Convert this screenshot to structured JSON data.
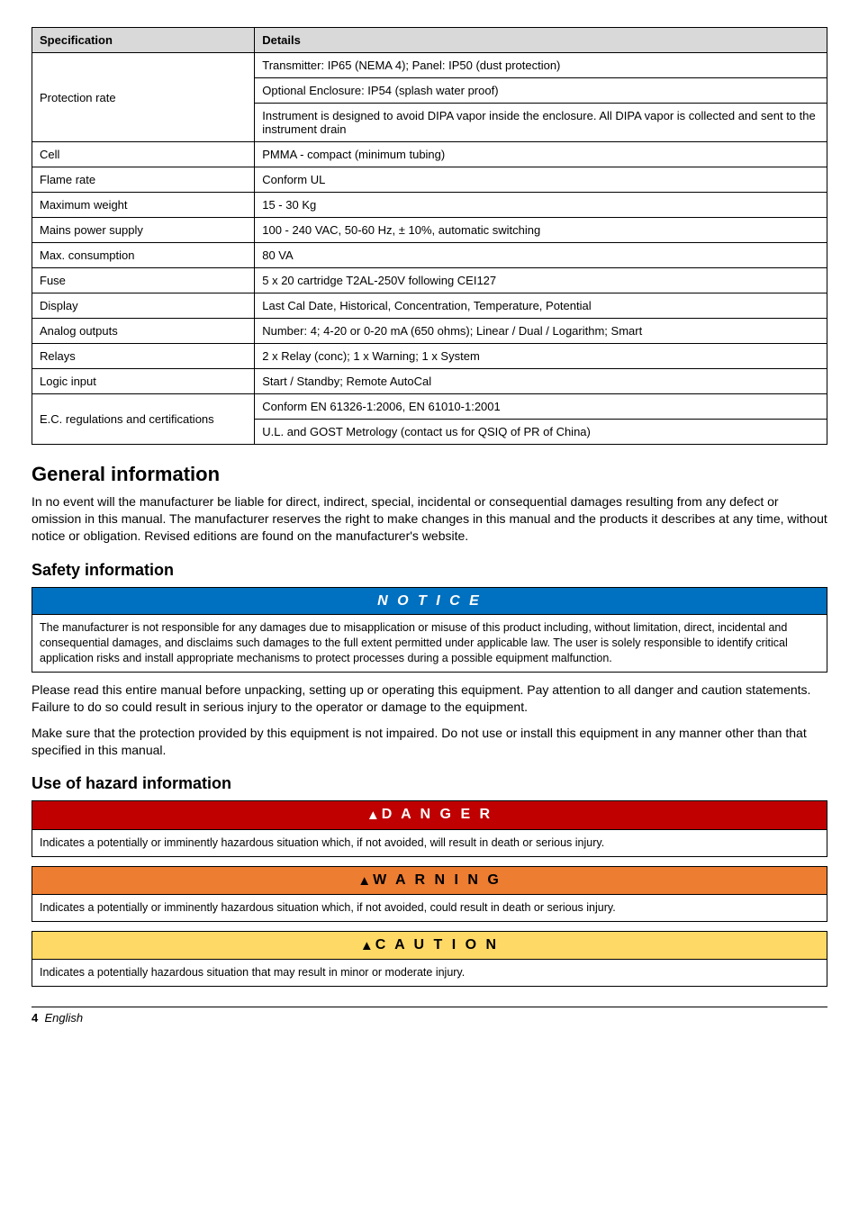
{
  "spec_table": {
    "headers": [
      "Specification",
      "Details"
    ],
    "rows": [
      {
        "spec": "Protection rate",
        "details": [
          "Transmitter: IP65 (NEMA 4); Panel: IP50 (dust protection)",
          "Optional Enclosure: IP54 (splash water proof)",
          "Instrument is designed to avoid DIPA vapor inside the enclosure. All DIPA vapor is collected and sent to the instrument drain"
        ]
      },
      {
        "spec": "Cell",
        "details": [
          "PMMA - compact (minimum tubing)"
        ]
      },
      {
        "spec": "Flame rate",
        "details": [
          "Conform UL"
        ]
      },
      {
        "spec": "Maximum weight",
        "details": [
          "15 - 30 Kg"
        ]
      },
      {
        "spec": "Mains power supply",
        "details": [
          "100 - 240 VAC, 50-60 Hz, ± 10%, automatic switching"
        ]
      },
      {
        "spec": "Max. consumption",
        "details": [
          "80 VA"
        ]
      },
      {
        "spec": "Fuse",
        "details": [
          "5 x 20 cartridge T2AL-250V following CEI127"
        ]
      },
      {
        "spec": "Display",
        "details": [
          "Last Cal Date, Historical, Concentration, Temperature, Potential"
        ]
      },
      {
        "spec": "Analog outputs",
        "details": [
          "Number: 4; 4-20 or 0-20 mA (650 ohms); Linear / Dual / Logarithm; Smart"
        ]
      },
      {
        "spec": "Relays",
        "details": [
          "2 x Relay (conc); 1 x Warning; 1 x System"
        ]
      },
      {
        "spec": "Logic input",
        "details": [
          "Start / Standby; Remote AutoCal"
        ]
      },
      {
        "spec": "E.C. regulations and certifications",
        "details": [
          "Conform EN 61326-1:2006, EN 61010-1:2001",
          "U.L. and GOST Metrology (contact us for QSIQ of PR of China)"
        ]
      }
    ]
  },
  "general": {
    "title": "General information",
    "body": "In no event will the manufacturer be liable for direct, indirect, special, incidental or consequential damages resulting from any defect or omission in this manual. The manufacturer reserves the right to make changes in this manual and the products it describes at any time, without notice or obligation. Revised editions are found on the manufacturer's website."
  },
  "safety": {
    "title": "Safety information",
    "notice_label": "N O T I C E",
    "notice_body": "The manufacturer is not responsible for any damages due to misapplication or misuse of this product including, without limitation, direct, incidental and consequential damages, and disclaims such damages to the full extent permitted under applicable law. The user is solely responsible to identify critical application risks and install appropriate mechanisms to protect processes during a possible equipment malfunction.",
    "p1": "Please read this entire manual before unpacking, setting up or operating this equipment. Pay attention to all danger and caution statements. Failure to do so could result in serious injury to the operator or damage to the equipment.",
    "p2": "Make sure that the protection provided by this equipment is not impaired. Do not use or install this equipment in any manner other than that specified in this manual."
  },
  "hazard": {
    "title": "Use of hazard information",
    "danger_label": "D A N G E R",
    "danger_body": "Indicates a potentially or imminently hazardous situation which, if not avoided, will result in death or serious injury.",
    "warning_label": "W A R N I N G",
    "warning_body": "Indicates a potentially or imminently hazardous situation which, if not avoided, could result in death or serious injury.",
    "caution_label": "C A U T I O N",
    "caution_body": "Indicates a potentially hazardous situation that may result in minor or moderate injury."
  },
  "footer": {
    "page": "4",
    "lang": "English"
  },
  "icons": {
    "triangle": "▲"
  },
  "colors": {
    "notice": "#0070c0",
    "danger": "#c00000",
    "warning": "#ed7d31",
    "caution": "#ffd966",
    "header_gray": "#d9d9d9"
  }
}
